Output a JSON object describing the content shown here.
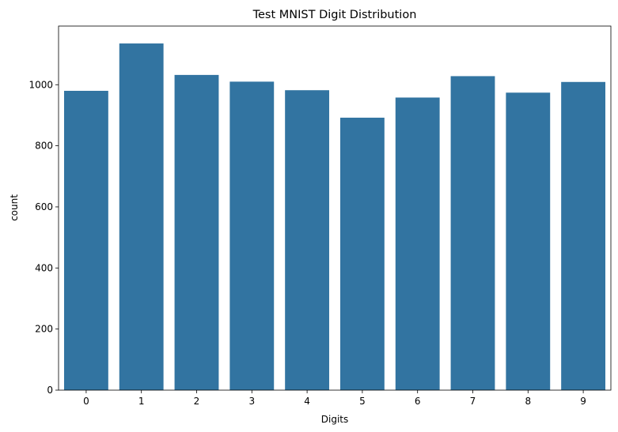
{
  "chart_data": {
    "type": "bar",
    "title": "Test MNIST Digit Distribution",
    "xlabel": "Digits",
    "ylabel": "count",
    "categories": [
      "0",
      "1",
      "2",
      "3",
      "4",
      "5",
      "6",
      "7",
      "8",
      "9"
    ],
    "values": [
      980,
      1135,
      1032,
      1010,
      982,
      892,
      958,
      1028,
      974,
      1009
    ],
    "ylim": [
      0,
      1192
    ],
    "yticks": [
      0,
      200,
      400,
      600,
      800,
      1000
    ],
    "grid": false,
    "legend": "none",
    "bar_color": "#3274a1"
  }
}
